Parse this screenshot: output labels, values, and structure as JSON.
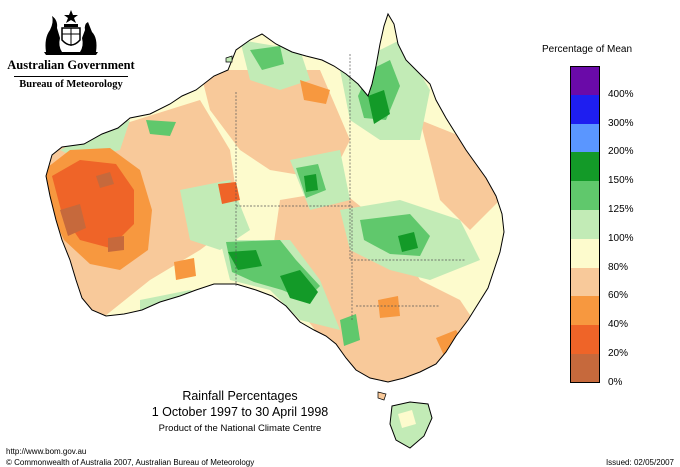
{
  "header": {
    "government": "Australian Government",
    "agency": "Bureau of Meteorology"
  },
  "map": {
    "title": "Rainfall Percentages",
    "period": "1 October 1997 to 30 April 1998",
    "product_note": "Product of the National Climate Centre"
  },
  "legend": {
    "title": "Percentage of Mean",
    "classes": [
      {
        "color": "#6a0aa8",
        "label": "400%"
      },
      {
        "color": "#1e1ef0",
        "label": "300%"
      },
      {
        "color": "#5a96ff",
        "label": "200%"
      },
      {
        "color": "#139a28",
        "label": "150%"
      },
      {
        "color": "#60c86c",
        "label": "125%"
      },
      {
        "color": "#c2ebb6",
        "label": "100%"
      },
      {
        "color": "#fdfbcd",
        "label": "80%"
      },
      {
        "color": "#f8c99a",
        "label": "60%"
      },
      {
        "color": "#f7983f",
        "label": "40%"
      },
      {
        "color": "#ef6428",
        "label": "20%"
      },
      {
        "color": "#c6693c",
        "label": "0%"
      }
    ]
  },
  "footer": {
    "url": "http://www.bom.gov.au",
    "copyright": "© Commonwealth of Australia 2007, Australian Bureau of Meteorology",
    "issued": "Issued: 02/05/2007"
  }
}
